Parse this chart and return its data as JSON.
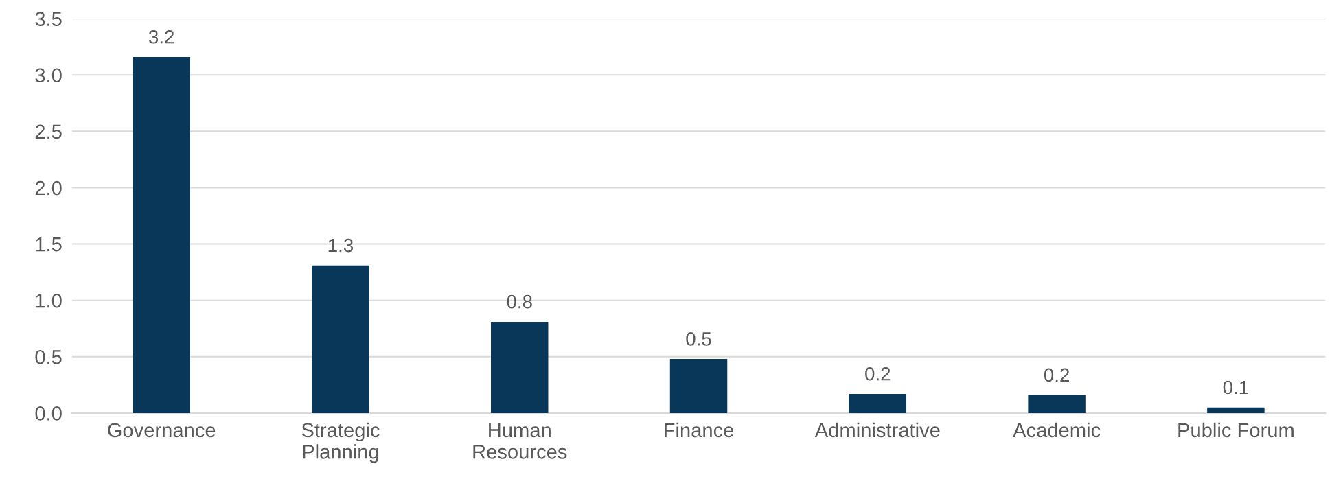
{
  "chart_data": {
    "type": "bar",
    "categories": [
      "Governance",
      "Strategic\nPlanning",
      "Human\nResources",
      "Finance",
      "Administrative",
      "Academic",
      "Public Forum"
    ],
    "values": [
      3.16,
      1.31,
      0.81,
      0.48,
      0.17,
      0.16,
      0.05
    ],
    "value_labels": [
      "3.2",
      "1.3",
      "0.8",
      "0.5",
      "0.2",
      "0.2",
      "0.1"
    ],
    "color": "#08375a",
    "ylim": [
      0,
      3.5
    ],
    "yticks": [
      {
        "value": 0,
        "label": "0.0"
      },
      {
        "value": 0.5,
        "label": "0.5"
      },
      {
        "value": 1,
        "label": "1.0"
      },
      {
        "value": 1.5,
        "label": "1.5"
      },
      {
        "value": 2,
        "label": "2.0"
      },
      {
        "value": 2.5,
        "label": "2.5"
      },
      {
        "value": 3,
        "label": "3.0"
      },
      {
        "value": 3.5,
        "label": "3.5"
      }
    ],
    "grid": "y",
    "legend": false
  }
}
